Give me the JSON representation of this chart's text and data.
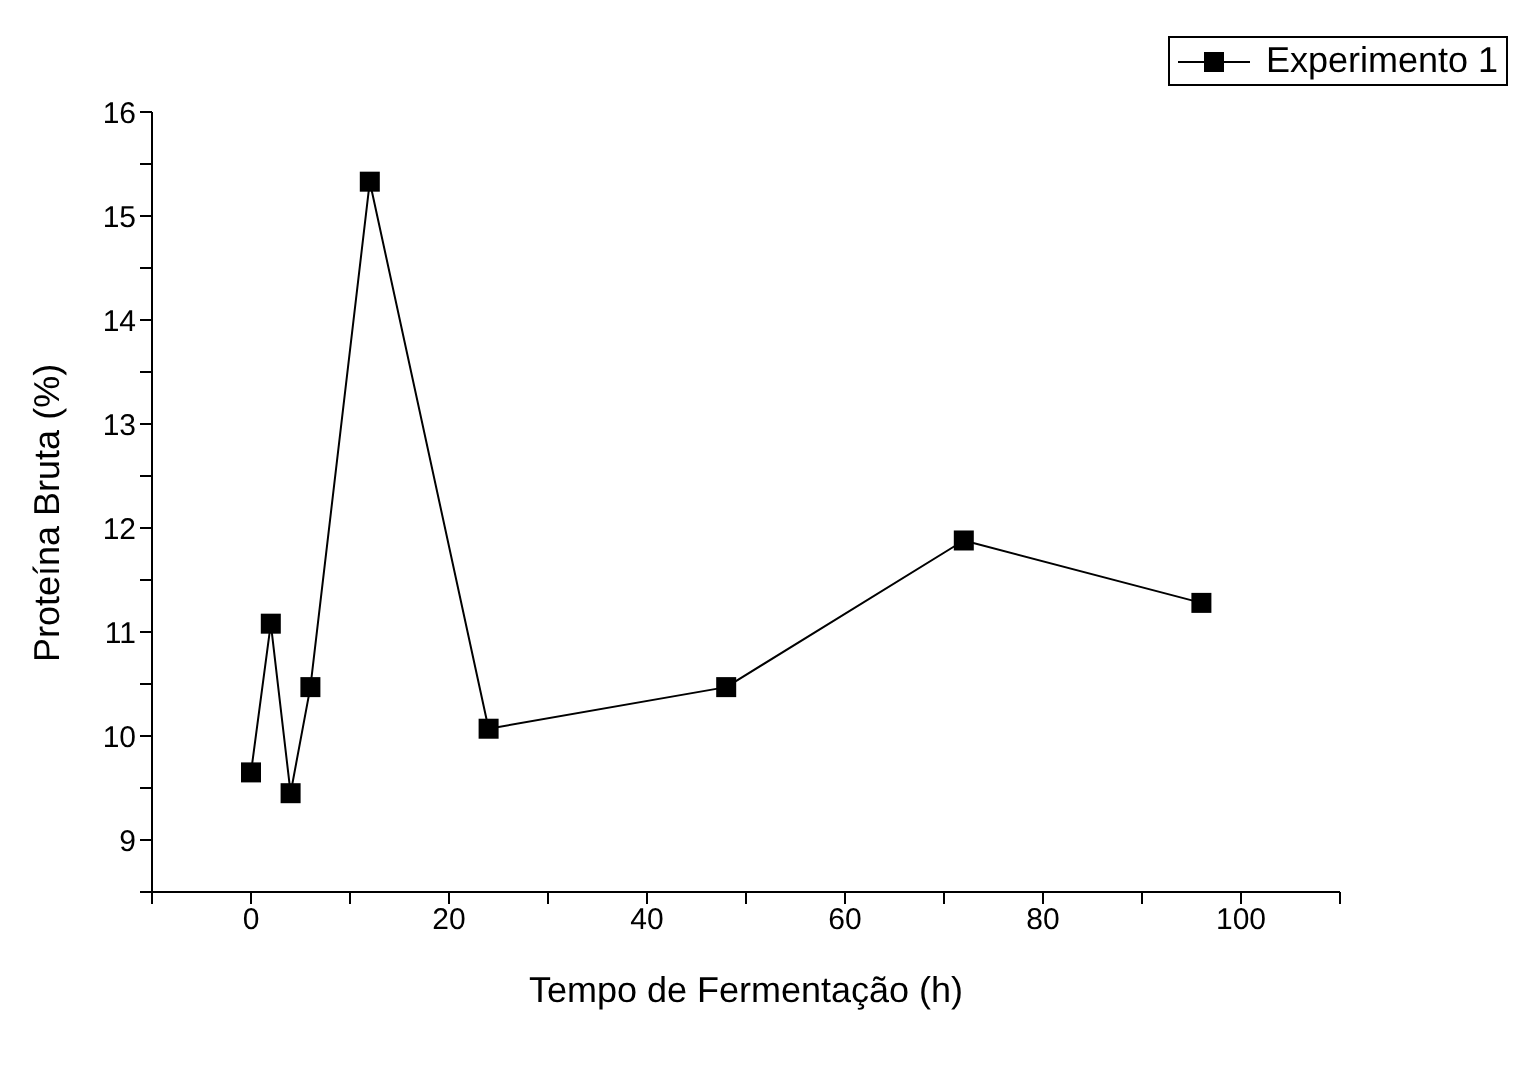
{
  "chart_data": {
    "type": "line",
    "xlabel": "Tempo de Fermentação (h)",
    "ylabel": "Proteína Bruta (%)",
    "x": [
      0,
      2,
      4,
      6,
      12,
      24,
      48,
      72,
      96
    ],
    "series": [
      {
        "name": "Experimento 1",
        "color": "#000000",
        "values": [
          9.65,
          11.08,
          9.45,
          10.47,
          15.33,
          10.07,
          10.47,
          11.88,
          11.28
        ]
      }
    ],
    "xlim": [
      -10,
      110
    ],
    "xticks": [
      {
        "value": -10,
        "label": null
      },
      0,
      {
        "value": 10,
        "label": null
      },
      20,
      {
        "value": 30,
        "label": null
      },
      40,
      {
        "value": 50,
        "label": null
      },
      60,
      {
        "value": 70,
        "label": null
      },
      80,
      {
        "value": 90,
        "label": null
      },
      100,
      {
        "value": 110,
        "label": null
      }
    ],
    "ylim": [
      8.5,
      16
    ],
    "yticks": [
      {
        "value": 8.5,
        "label": null
      },
      9,
      {
        "value": 9.5,
        "label": null
      },
      10,
      {
        "value": 10.5,
        "label": null
      },
      11,
      {
        "value": 11.5,
        "label": null
      },
      12,
      {
        "value": 12.5,
        "label": null
      },
      13,
      {
        "value": 13.5,
        "label": null
      },
      14,
      {
        "value": 14.5,
        "label": null
      },
      15,
      {
        "value": 15.5,
        "label": null
      },
      16
    ],
    "marker": "square",
    "line_style": "solid",
    "grid": false,
    "legend": "top right"
  }
}
